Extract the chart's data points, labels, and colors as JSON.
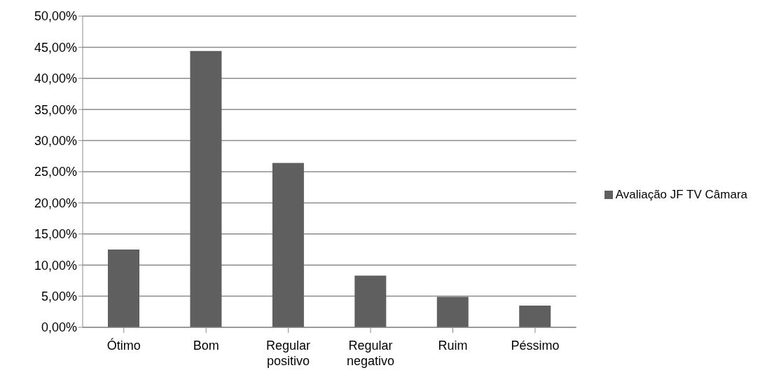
{
  "chart_data": {
    "type": "bar",
    "categories": [
      "Ótimo",
      "Bom",
      "Regular positivo",
      "Regular negativo",
      "Ruim",
      "Péssimo"
    ],
    "series": [
      {
        "name": "Avaliação JF TV Câmara",
        "color": "#5f5f5f",
        "values": [
          12.5,
          44.4,
          26.4,
          8.3,
          4.9,
          3.5
        ]
      }
    ],
    "ylim": [
      0,
      50
    ],
    "yticks": [
      {
        "value": 0,
        "label": "0,00%"
      },
      {
        "value": 5,
        "label": "5,00%"
      },
      {
        "value": 10,
        "label": "10,00%"
      },
      {
        "value": 15,
        "label": "15,00%"
      },
      {
        "value": 20,
        "label": "20,00%"
      },
      {
        "value": 25,
        "label": "25,00%"
      },
      {
        "value": 30,
        "label": "30,00%"
      },
      {
        "value": 35,
        "label": "35,00%"
      },
      {
        "value": 40,
        "label": "40,00%"
      },
      {
        "value": 45,
        "label": "45,00%"
      },
      {
        "value": 50,
        "label": "50,00%"
      }
    ],
    "grid": "y",
    "legend": "right"
  }
}
